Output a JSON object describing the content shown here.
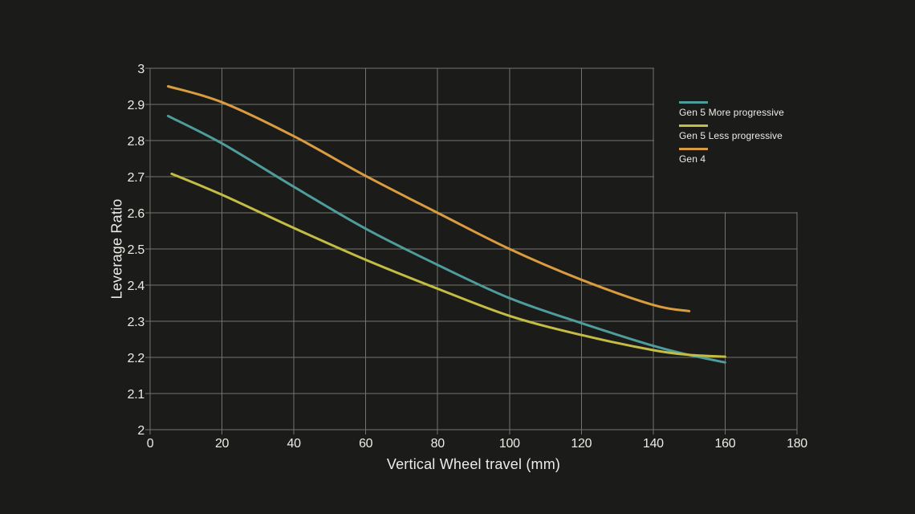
{
  "colors": {
    "background": "#1b1b19",
    "grid": "#73736f",
    "text": "#ebebe7"
  },
  "chart_data": {
    "type": "line",
    "title": "",
    "xlabel": "Vertical Wheel travel (mm)",
    "ylabel": "Leverage Ratio",
    "xlim": [
      0,
      180
    ],
    "ylim": [
      2,
      3
    ],
    "x_ticks": [
      0,
      20,
      40,
      60,
      80,
      100,
      120,
      140,
      160,
      180
    ],
    "y_ticks": [
      2,
      2.1,
      2.2,
      2.3,
      2.4,
      2.5,
      2.6,
      2.7,
      2.8,
      2.9,
      3
    ],
    "y_tick_labels": [
      "2",
      "2.1",
      "2.2",
      "2.3",
      "2.4",
      "2.5",
      "2.6",
      "2.7",
      "2.8",
      "2.9",
      "3"
    ],
    "grid": true,
    "legend_position": "top-right-inside",
    "series": [
      {
        "name": "Gen 5 More progressive",
        "color": "#4f9c9c",
        "points": [
          [
            5,
            2.868
          ],
          [
            20,
            2.792
          ],
          [
            40,
            2.672
          ],
          [
            60,
            2.556
          ],
          [
            80,
            2.456
          ],
          [
            100,
            2.364
          ],
          [
            120,
            2.295
          ],
          [
            140,
            2.232
          ],
          [
            150,
            2.207
          ],
          [
            160,
            2.186
          ]
        ]
      },
      {
        "name": "Gen 5 Less progressive",
        "color": "#c4bd45",
        "points": [
          [
            6,
            2.708
          ],
          [
            20,
            2.65
          ],
          [
            40,
            2.558
          ],
          [
            60,
            2.47
          ],
          [
            80,
            2.39
          ],
          [
            100,
            2.315
          ],
          [
            120,
            2.262
          ],
          [
            140,
            2.22
          ],
          [
            150,
            2.207
          ],
          [
            160,
            2.202
          ]
        ]
      },
      {
        "name": "Gen 4",
        "color": "#d99c3e",
        "points": [
          [
            5,
            2.95
          ],
          [
            20,
            2.906
          ],
          [
            40,
            2.812
          ],
          [
            60,
            2.702
          ],
          [
            80,
            2.6
          ],
          [
            100,
            2.5
          ],
          [
            120,
            2.415
          ],
          [
            140,
            2.345
          ],
          [
            150,
            2.328
          ]
        ]
      }
    ]
  }
}
